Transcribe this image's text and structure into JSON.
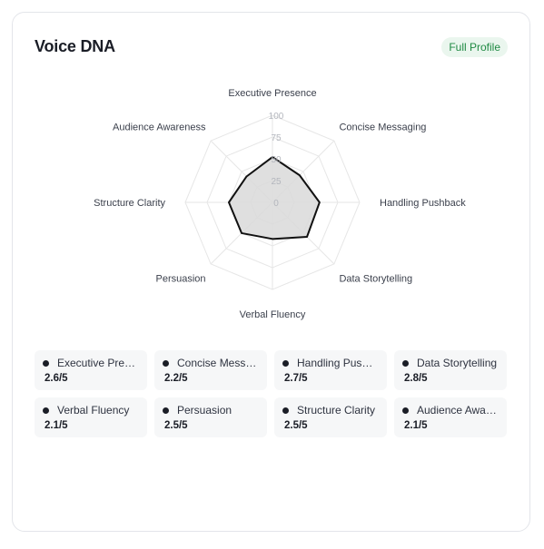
{
  "card": {
    "title": "Voice DNA",
    "badge": "Full Profile"
  },
  "chart_data": {
    "type": "radar",
    "title": "",
    "axes": [
      "Executive Presence",
      "Concise Messaging",
      "Handling Pushback",
      "Data Storytelling",
      "Verbal Fluency",
      "Persuasion",
      "Structure Clarity",
      "Audience Awareness"
    ],
    "scale_ticks": [
      "0",
      "25",
      "50",
      "75",
      "100"
    ],
    "range": [
      0,
      100
    ],
    "series": [
      {
        "values": [
          52,
          44,
          54,
          56,
          42,
          50,
          50,
          42
        ]
      }
    ],
    "colors": {
      "line": "#111111",
      "fill": "#d9d9d9",
      "grid": "#e6e6e6"
    }
  },
  "scores": [
    {
      "name": "Executive Presence",
      "display": "Executive Prese...",
      "score": "2.6/5"
    },
    {
      "name": "Concise Messaging",
      "display": "Concise Messa...",
      "score": "2.2/5"
    },
    {
      "name": "Handling Pushback",
      "display": "Handling Pushb...",
      "score": "2.7/5"
    },
    {
      "name": "Data Storytelling",
      "display": "Data Storytelling",
      "score": "2.8/5"
    },
    {
      "name": "Verbal Fluency",
      "display": "Verbal Fluency",
      "score": "2.1/5"
    },
    {
      "name": "Persuasion",
      "display": "Persuasion",
      "score": "2.5/5"
    },
    {
      "name": "Structure Clarity",
      "display": "Structure Clarity",
      "score": "2.5/5"
    },
    {
      "name": "Audience Awareness",
      "display": "Audience Awar...",
      "score": "2.1/5"
    }
  ]
}
